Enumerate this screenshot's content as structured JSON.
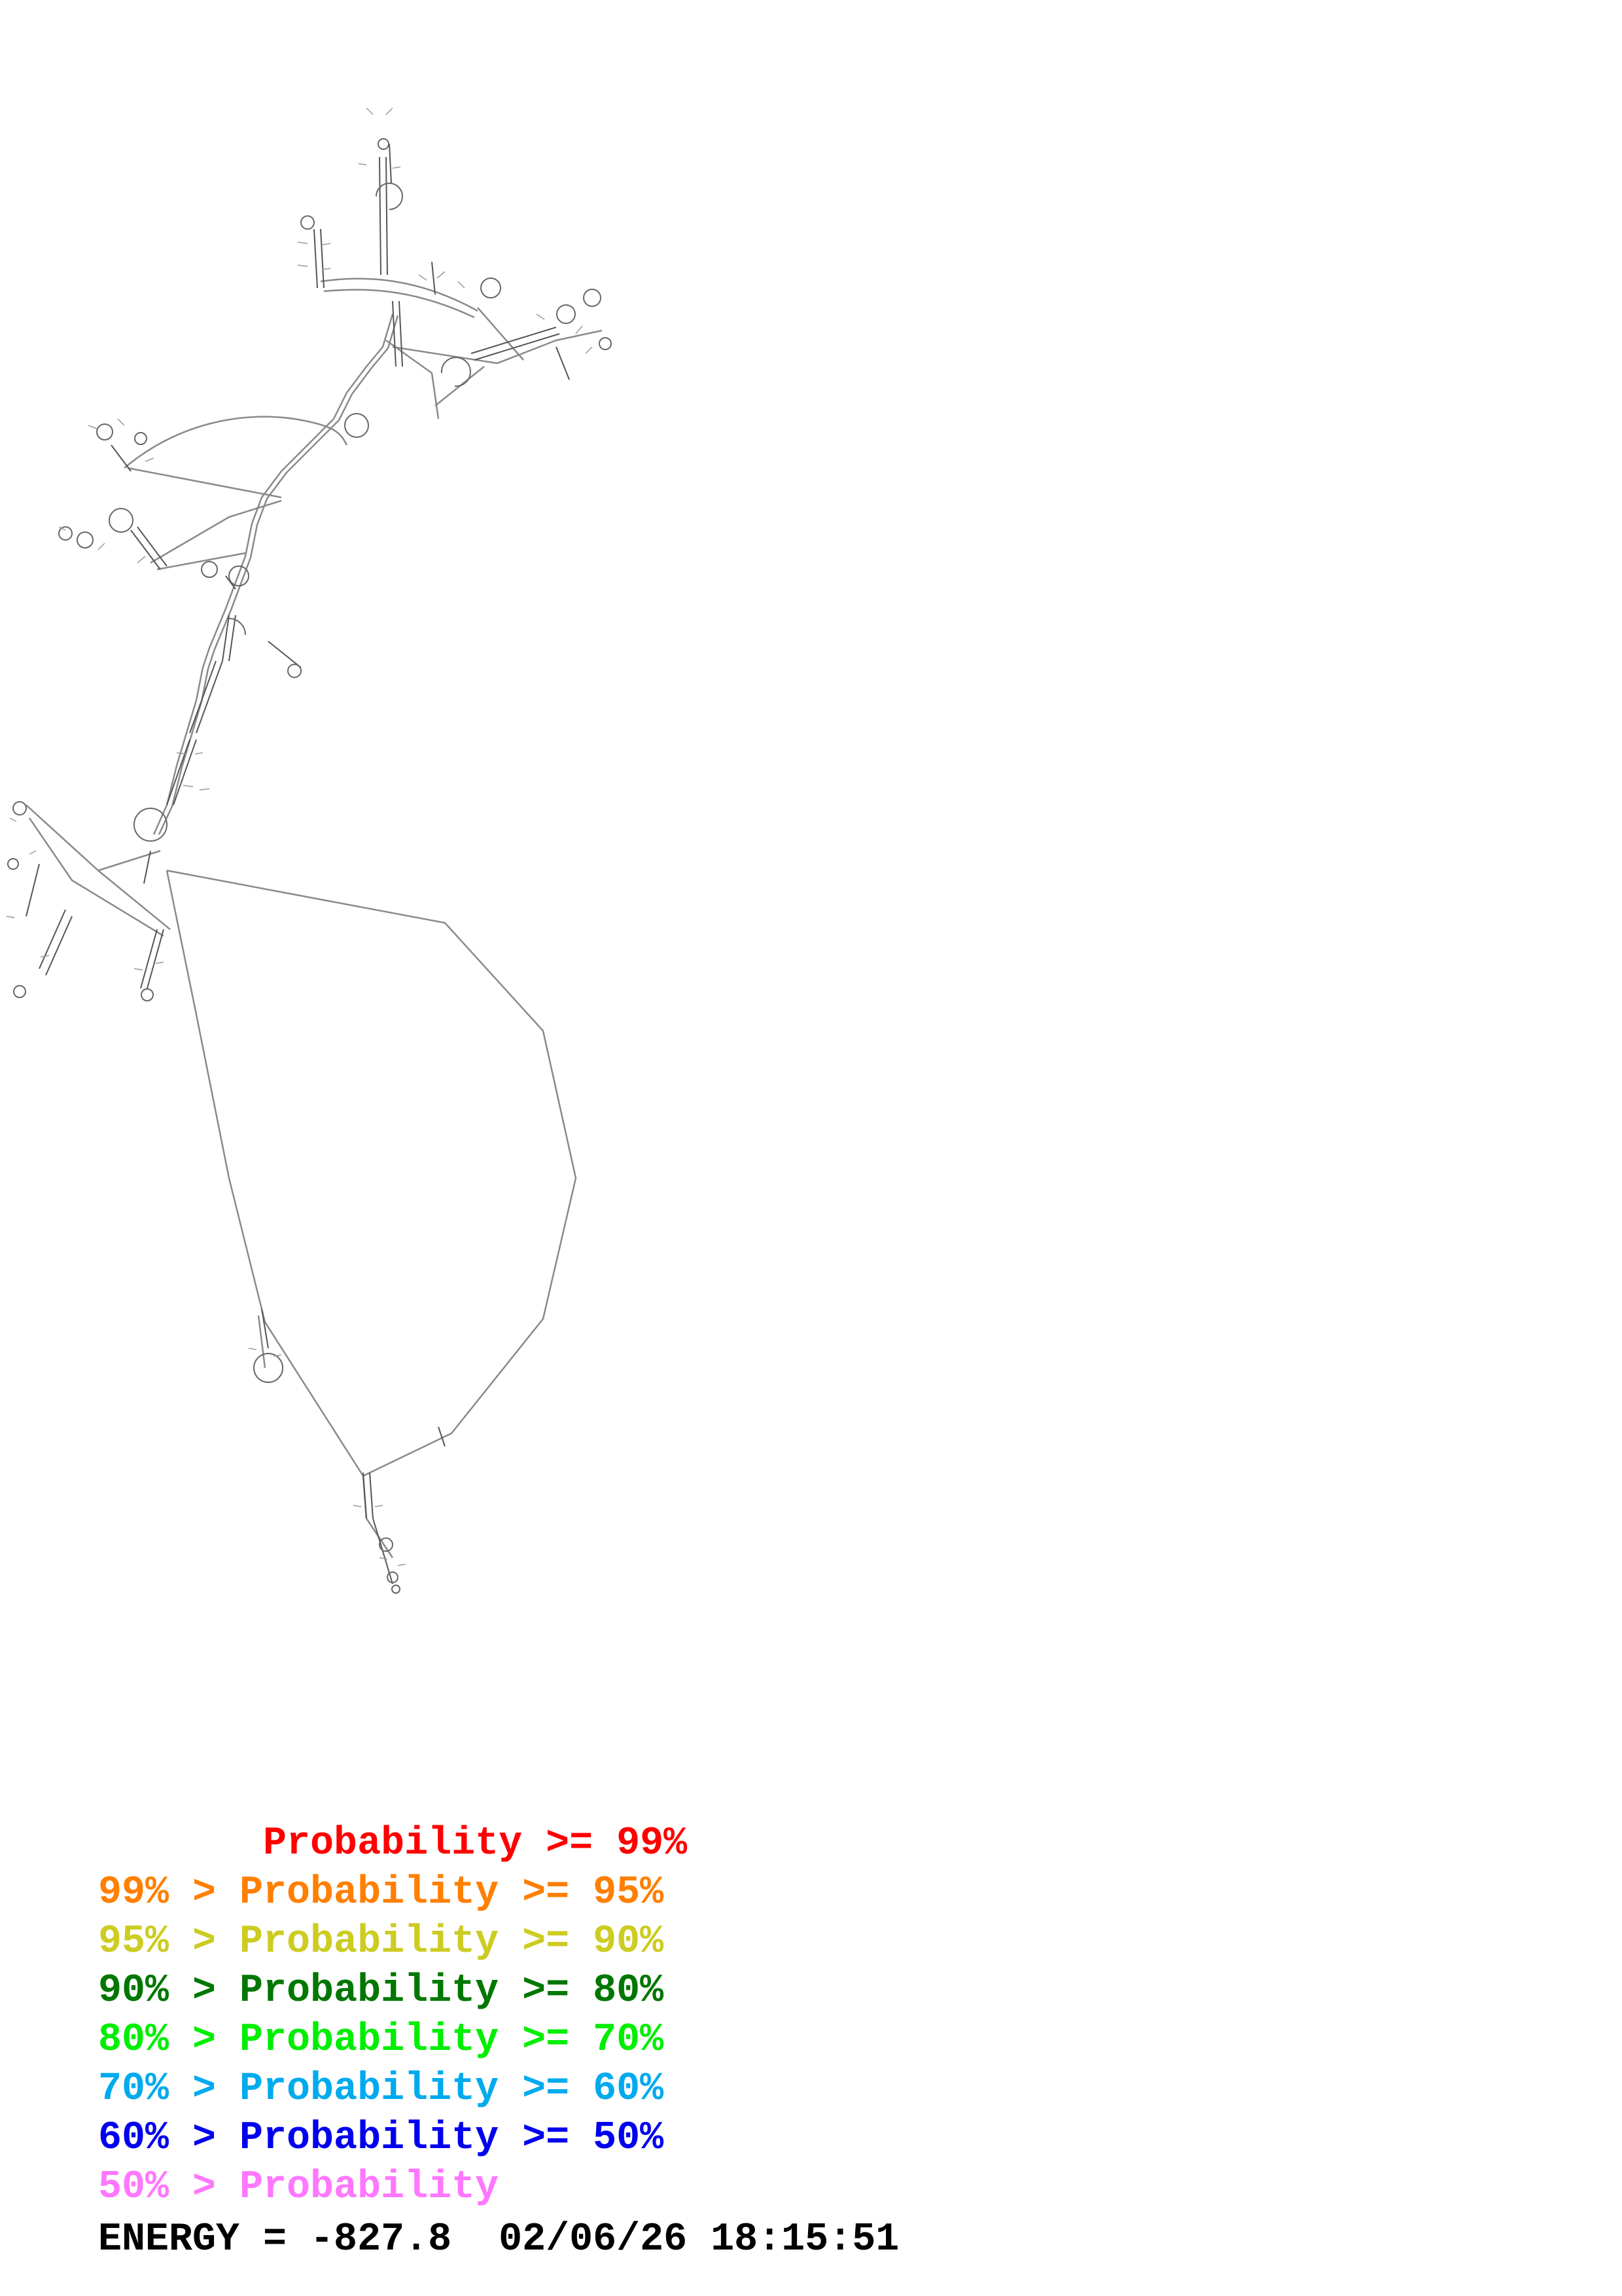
{
  "legend": [
    {
      "text": "       Probability >= 99%",
      "color": "#ff0000"
    },
    {
      "text": "99% > Probability >= 95%",
      "color": "#ff7f00"
    },
    {
      "text": "95% > Probability >= 90%",
      "color": "#cccc22"
    },
    {
      "text": "90% > Probability >= 80%",
      "color": "#007700"
    },
    {
      "text": "80% > Probability >= 70%",
      "color": "#00ee00"
    },
    {
      "text": "70% > Probability >= 60%",
      "color": "#00aaee"
    },
    {
      "text": "60% > Probability >= 50%",
      "color": "#0000ee"
    },
    {
      "text": "50% > Probability",
      "color": "#ff77ff"
    }
  ],
  "footer": {
    "energy": "ENERGY = -827.8",
    "timestamp": "02/06/26 18:15:51"
  },
  "structure": {
    "line_color": "#888888",
    "pair_color": "#555555"
  }
}
